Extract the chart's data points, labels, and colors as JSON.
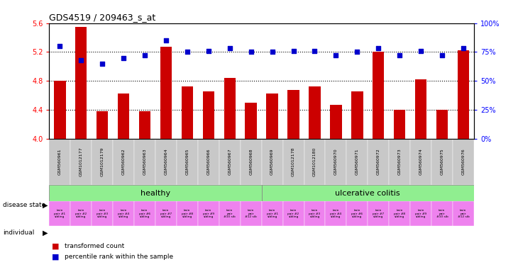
{
  "title": "GDS4519 / 209463_s_at",
  "samples": [
    "GSM560961",
    "GSM1012177",
    "GSM1012179",
    "GSM560962",
    "GSM560963",
    "GSM560964",
    "GSM560965",
    "GSM560966",
    "GSM560967",
    "GSM560968",
    "GSM560969",
    "GSM1012178",
    "GSM1012180",
    "GSM560970",
    "GSM560971",
    "GSM560972",
    "GSM560973",
    "GSM560974",
    "GSM560975",
    "GSM560976"
  ],
  "bar_values": [
    4.8,
    5.55,
    4.38,
    4.62,
    4.38,
    5.27,
    4.72,
    4.65,
    4.84,
    4.5,
    4.62,
    4.67,
    4.72,
    4.47,
    4.65,
    5.2,
    4.4,
    4.82,
    4.4,
    5.22
  ],
  "blue_values": [
    80,
    68,
    65,
    70,
    72,
    85,
    75,
    76,
    78,
    75,
    75,
    76,
    76,
    72,
    75,
    78,
    72,
    76,
    72,
    78
  ],
  "bar_color": "#cc0000",
  "blue_color": "#0000cc",
  "ylim_left": [
    4.0,
    5.6
  ],
  "ylim_right": [
    0,
    100
  ],
  "yticks_left": [
    4.0,
    4.4,
    4.8,
    5.2,
    5.6
  ],
  "yticks_right": [
    0,
    25,
    50,
    75,
    100
  ],
  "ytick_labels_right": [
    "0%",
    "25%",
    "50%",
    "75%",
    "100%"
  ],
  "hlines": [
    4.4,
    4.8,
    5.2
  ],
  "healthy_label": "healthy",
  "colitis_label": "ulcerative colitis",
  "n_healthy": 10,
  "n_colitis": 10,
  "disease_state_label": "disease state",
  "individual_label": "individual",
  "healthy_color": "#90ee90",
  "colitis_color": "#90ee90",
  "individual_color": "#ee82ee",
  "legend_bar_label": "transformed count",
  "legend_dot_label": "percentile rank within the sample",
  "individuals_healthy": [
    "twin\npair #1\nsibling",
    "twin\npair #2\nsibling",
    "twin\npair #3\nsibling",
    "twin\npair #4\nsibling",
    "twin\npair #6\nsibling",
    "twin\npair #7\nsibling",
    "twin\npair #8\nsibling",
    "twin\npair #9\nsibling",
    "twin\npair\n#10 sib",
    "twin\npair\n#12 sib"
  ],
  "individuals_colitis": [
    "twin\npair #1\nsibling",
    "twin\npair #2\nsibling",
    "twin\npair #3\nsibling",
    "twin\npair #4\nsibling",
    "twin\npair #6\nsibling",
    "twin\npair #7\nsibling",
    "twin\npair #8\nsibling",
    "twin\npair #9\nsibling",
    "twin\npair\n#10 sib",
    "twin\npair\n#12 sib"
  ],
  "bar_width": 0.55,
  "bg_color": "#ffffff",
  "plot_bg": "#ffffff",
  "xtick_bg": "#c8c8c8",
  "title_size": 9,
  "bar_label_size": 5
}
